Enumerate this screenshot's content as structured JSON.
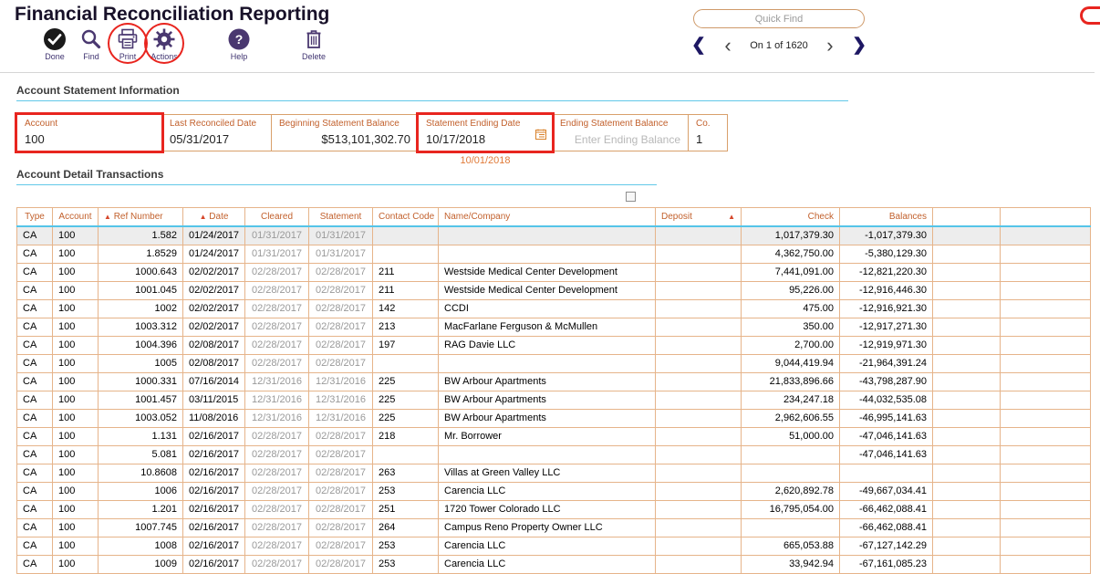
{
  "header": {
    "title": "Financial Reconciliation Reporting",
    "quick_find": {
      "placeholder": "Quick Find"
    },
    "record_nav": {
      "text": "On 1 of 1620"
    }
  },
  "toolbar": {
    "items": [
      {
        "label": "Done"
      },
      {
        "label": "Find"
      },
      {
        "label": "Print"
      },
      {
        "label": "Actions"
      },
      {
        "label": "Help"
      },
      {
        "label": "Delete"
      }
    ]
  },
  "sections": {
    "account_statement_information": "Account Statement Information",
    "account_detail_transactions": "Account Detail Transactions"
  },
  "fields": {
    "account": {
      "label": "Account",
      "value": "100"
    },
    "last_reconciled_date": {
      "label": "Last Reconciled Date",
      "value": "05/31/2017"
    },
    "beginning_statement_balance": {
      "label": "Beginning Statement Balance",
      "value": "$513,101,302.70"
    },
    "statement_ending_date": {
      "label": "Statement Ending Date",
      "value": "10/17/2018",
      "hint": "10/01/2018"
    },
    "ending_statement_balance": {
      "label": "Ending Statement Balance",
      "placeholder": "Enter Ending Balance"
    },
    "co": {
      "label": "Co.",
      "value": "1"
    }
  },
  "table": {
    "columns": [
      "Type",
      "Account",
      "Ref Number",
      "Date",
      "Cleared",
      "Statement",
      "Contact Code",
      "Name/Company",
      "Deposit",
      "Check",
      "Balances"
    ],
    "rows": [
      [
        "CA",
        "100",
        "1.582",
        "01/24/2017",
        "01/31/2017",
        "01/31/2017",
        "",
        "",
        "",
        "1,017,379.30",
        "-1,017,379.30"
      ],
      [
        "CA",
        "100",
        "1.8529",
        "01/24/2017",
        "01/31/2017",
        "01/31/2017",
        "",
        "",
        "",
        "4,362,750.00",
        "-5,380,129.30"
      ],
      [
        "CA",
        "100",
        "1000.643",
        "02/02/2017",
        "02/28/2017",
        "02/28/2017",
        "211",
        "Westside Medical Center Development",
        "",
        "7,441,091.00",
        "-12,821,220.30"
      ],
      [
        "CA",
        "100",
        "1001.045",
        "02/02/2017",
        "02/28/2017",
        "02/28/2017",
        "211",
        "Westside Medical Center Development",
        "",
        "95,226.00",
        "-12,916,446.30"
      ],
      [
        "CA",
        "100",
        "1002",
        "02/02/2017",
        "02/28/2017",
        "02/28/2017",
        "142",
        "CCDI",
        "",
        "475.00",
        "-12,916,921.30"
      ],
      [
        "CA",
        "100",
        "1003.312",
        "02/02/2017",
        "02/28/2017",
        "02/28/2017",
        "213",
        "MacFarlane Ferguson & McMullen",
        "",
        "350.00",
        "-12,917,271.30"
      ],
      [
        "CA",
        "100",
        "1004.396",
        "02/08/2017",
        "02/28/2017",
        "02/28/2017",
        "197",
        "RAG Davie LLC",
        "",
        "2,700.00",
        "-12,919,971.30"
      ],
      [
        "CA",
        "100",
        "1005",
        "02/08/2017",
        "02/28/2017",
        "02/28/2017",
        "",
        "",
        "",
        "9,044,419.94",
        "-21,964,391.24"
      ],
      [
        "CA",
        "100",
        "1000.331",
        "07/16/2014",
        "12/31/2016",
        "12/31/2016",
        "225",
        "BW Arbour Apartments",
        "",
        "21,833,896.66",
        "-43,798,287.90"
      ],
      [
        "CA",
        "100",
        "1001.457",
        "03/11/2015",
        "12/31/2016",
        "12/31/2016",
        "225",
        "BW Arbour Apartments",
        "",
        "234,247.18",
        "-44,032,535.08"
      ],
      [
        "CA",
        "100",
        "1003.052",
        "11/08/2016",
        "12/31/2016",
        "12/31/2016",
        "225",
        "BW Arbour Apartments",
        "",
        "2,962,606.55",
        "-46,995,141.63"
      ],
      [
        "CA",
        "100",
        "1.131",
        "02/16/2017",
        "02/28/2017",
        "02/28/2017",
        "218",
        "Mr. Borrower",
        "",
        "51,000.00",
        "-47,046,141.63"
      ],
      [
        "CA",
        "100",
        "5.081",
        "02/16/2017",
        "02/28/2017",
        "02/28/2017",
        "",
        "",
        "",
        "",
        "-47,046,141.63"
      ],
      [
        "CA",
        "100",
        "10.8608",
        "02/16/2017",
        "02/28/2017",
        "02/28/2017",
        "263",
        "Villas at Green Valley LLC",
        "",
        "",
        ""
      ],
      [
        "CA",
        "100",
        "1006",
        "02/16/2017",
        "02/28/2017",
        "02/28/2017",
        "253",
        "Carencia LLC",
        "",
        "2,620,892.78",
        "-49,667,034.41"
      ],
      [
        "CA",
        "100",
        "1.201",
        "02/16/2017",
        "02/28/2017",
        "02/28/2017",
        "251",
        "1720 Tower Colorado LLC",
        "",
        "16,795,054.00",
        "-66,462,088.41"
      ],
      [
        "CA",
        "100",
        "1007.745",
        "02/16/2017",
        "02/28/2017",
        "02/28/2017",
        "264",
        "Campus Reno Property Owner LLC",
        "",
        "",
        "-66,462,088.41"
      ],
      [
        "CA",
        "100",
        "1008",
        "02/16/2017",
        "02/28/2017",
        "02/28/2017",
        "253",
        "Carencia LLC",
        "",
        "665,053.88",
        "-67,127,142.29"
      ],
      [
        "CA",
        "100",
        "1009",
        "02/16/2017",
        "02/28/2017",
        "02/28/2017",
        "253",
        "Carencia LLC",
        "",
        "33,942.94",
        "-67,161,085.23"
      ]
    ]
  },
  "colors": {
    "accent_cyan": "#62c8e8",
    "table_border_orange": "#e6b48a",
    "label_orange": "#c2602c",
    "annotation_red": "#e8251f",
    "icon_purple": "#4a3870"
  }
}
